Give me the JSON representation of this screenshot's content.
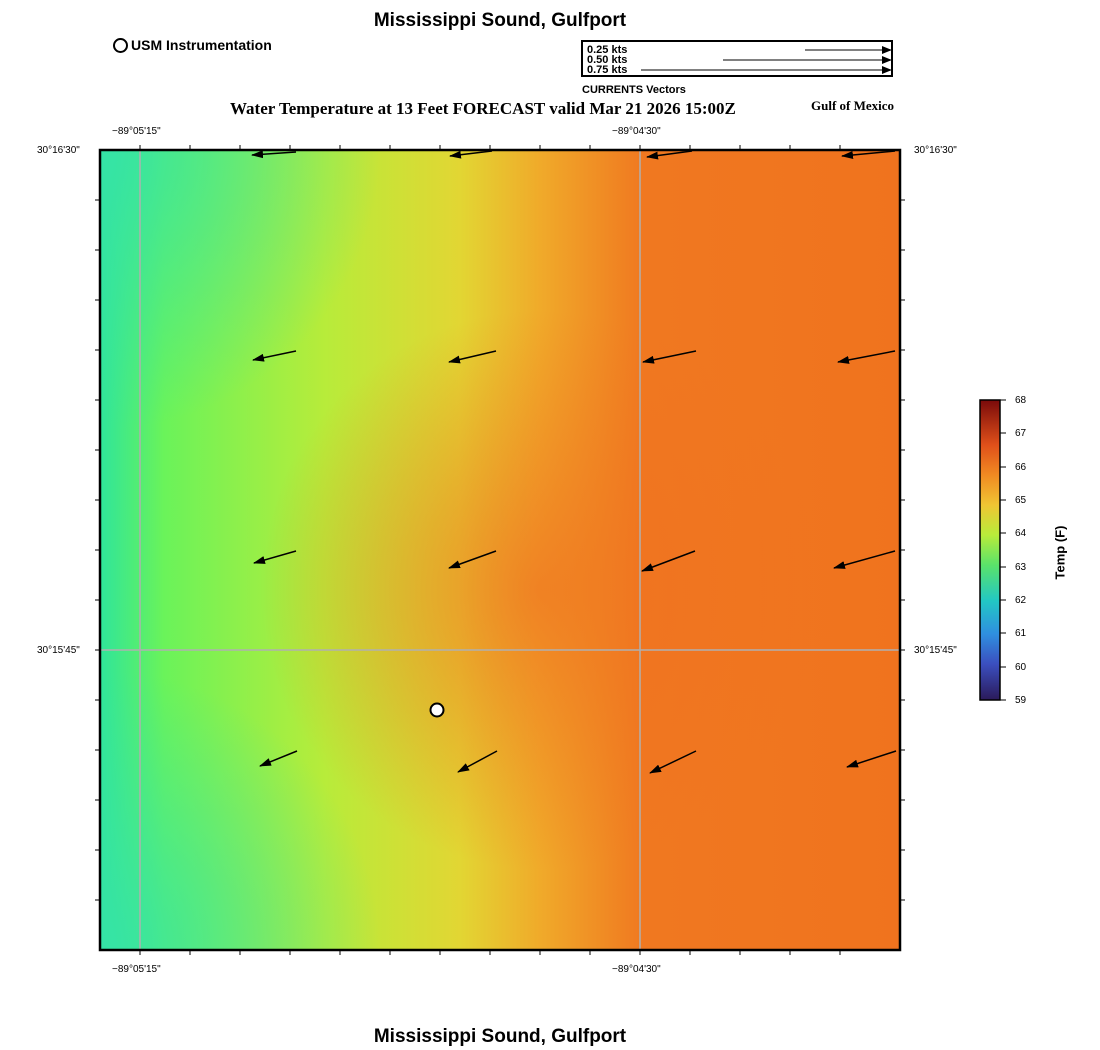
{
  "header": {
    "title": "Mississippi Sound, Gulfport",
    "subtitle": "Water Temperature at 13 Feet FORECAST valid Mar 21 2026 15:00Z",
    "region": "Gulf of Mexico",
    "footer_title": "Mississippi Sound, Gulfport"
  },
  "legend": {
    "station_label": "USM Instrumentation",
    "vector_caption": "CURRENTS Vectors",
    "vector_scale": [
      {
        "label": "0.25 kts",
        "speed_kts": 0.25
      },
      {
        "label": "0.50 kts",
        "speed_kts": 0.5
      },
      {
        "label": "0.75 kts",
        "speed_kts": 0.75
      }
    ]
  },
  "map": {
    "lon_labels_top": [
      "−89°05'15\"",
      "−89°04'30\""
    ],
    "lon_labels_bottom": [
      "−89°05'15\"",
      "−89°04'30\""
    ],
    "lat_labels_left": [
      "30°16'30\"",
      "30°15'45\""
    ],
    "lat_labels_right": [
      "30°16'30\"",
      "30°15'45\""
    ],
    "field_colors": {
      "cool": "#2fe59a",
      "mid": "#9cf03e",
      "warm": "#e6c934",
      "hot": "#f06c1e"
    },
    "gridline_color": "#b0b0b0"
  },
  "colorbar": {
    "title": "Temp (F)",
    "ticks": [
      "68",
      "67",
      "66",
      "65",
      "64",
      "63",
      "62",
      "61",
      "60",
      "59"
    ],
    "min": 59,
    "max": 68
  }
}
